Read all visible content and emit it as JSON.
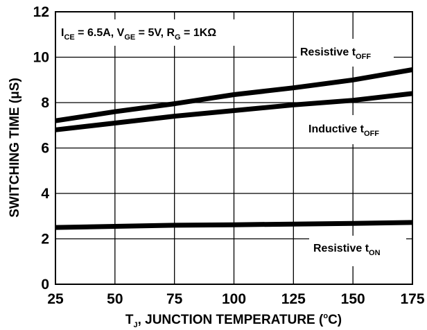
{
  "chart_data": {
    "type": "line",
    "xlabel": {
      "pre": "T",
      "sub": "J",
      "mid": ", JUNCTION TEMPERATURE (",
      "sup": "o",
      "post": "C)"
    },
    "ylabel": "SWITCHING TIME (μS)",
    "xlim": [
      25,
      175
    ],
    "ylim": [
      0,
      12
    ],
    "xticks": [
      "25",
      "50",
      "75",
      "100",
      "125",
      "150",
      "175"
    ],
    "yticks": [
      "0",
      "2",
      "4",
      "6",
      "8",
      "10",
      "12"
    ],
    "grid": true,
    "conditions": {
      "ice_pre": "I",
      "ice_sub": "CE",
      "ice_val": " = 6.5A, V",
      "vge_sub": "GE",
      "vge_val": " = 5V, R",
      "rg_sub": "G",
      "rg_val": " = 1KΩ"
    },
    "series": [
      {
        "name": "Resistive tOFF",
        "label_main": "Resistive t",
        "label_sub": "OFF",
        "x": [
          25,
          50,
          75,
          100,
          125,
          150,
          175
        ],
        "y": [
          7.2,
          7.6,
          7.95,
          8.35,
          8.65,
          9.0,
          9.45
        ]
      },
      {
        "name": "Inductive tOFF",
        "label_main": "Inductive t",
        "label_sub": "OFF",
        "x": [
          25,
          50,
          75,
          100,
          125,
          150,
          175
        ],
        "y": [
          6.8,
          7.1,
          7.4,
          7.65,
          7.9,
          8.1,
          8.4
        ]
      },
      {
        "name": "Resistive tON",
        "label_main": "Resistive t",
        "label_sub": "ON",
        "x": [
          25,
          50,
          75,
          100,
          125,
          150,
          175
        ],
        "y": [
          2.5,
          2.55,
          2.6,
          2.62,
          2.65,
          2.68,
          2.72
        ]
      }
    ]
  }
}
